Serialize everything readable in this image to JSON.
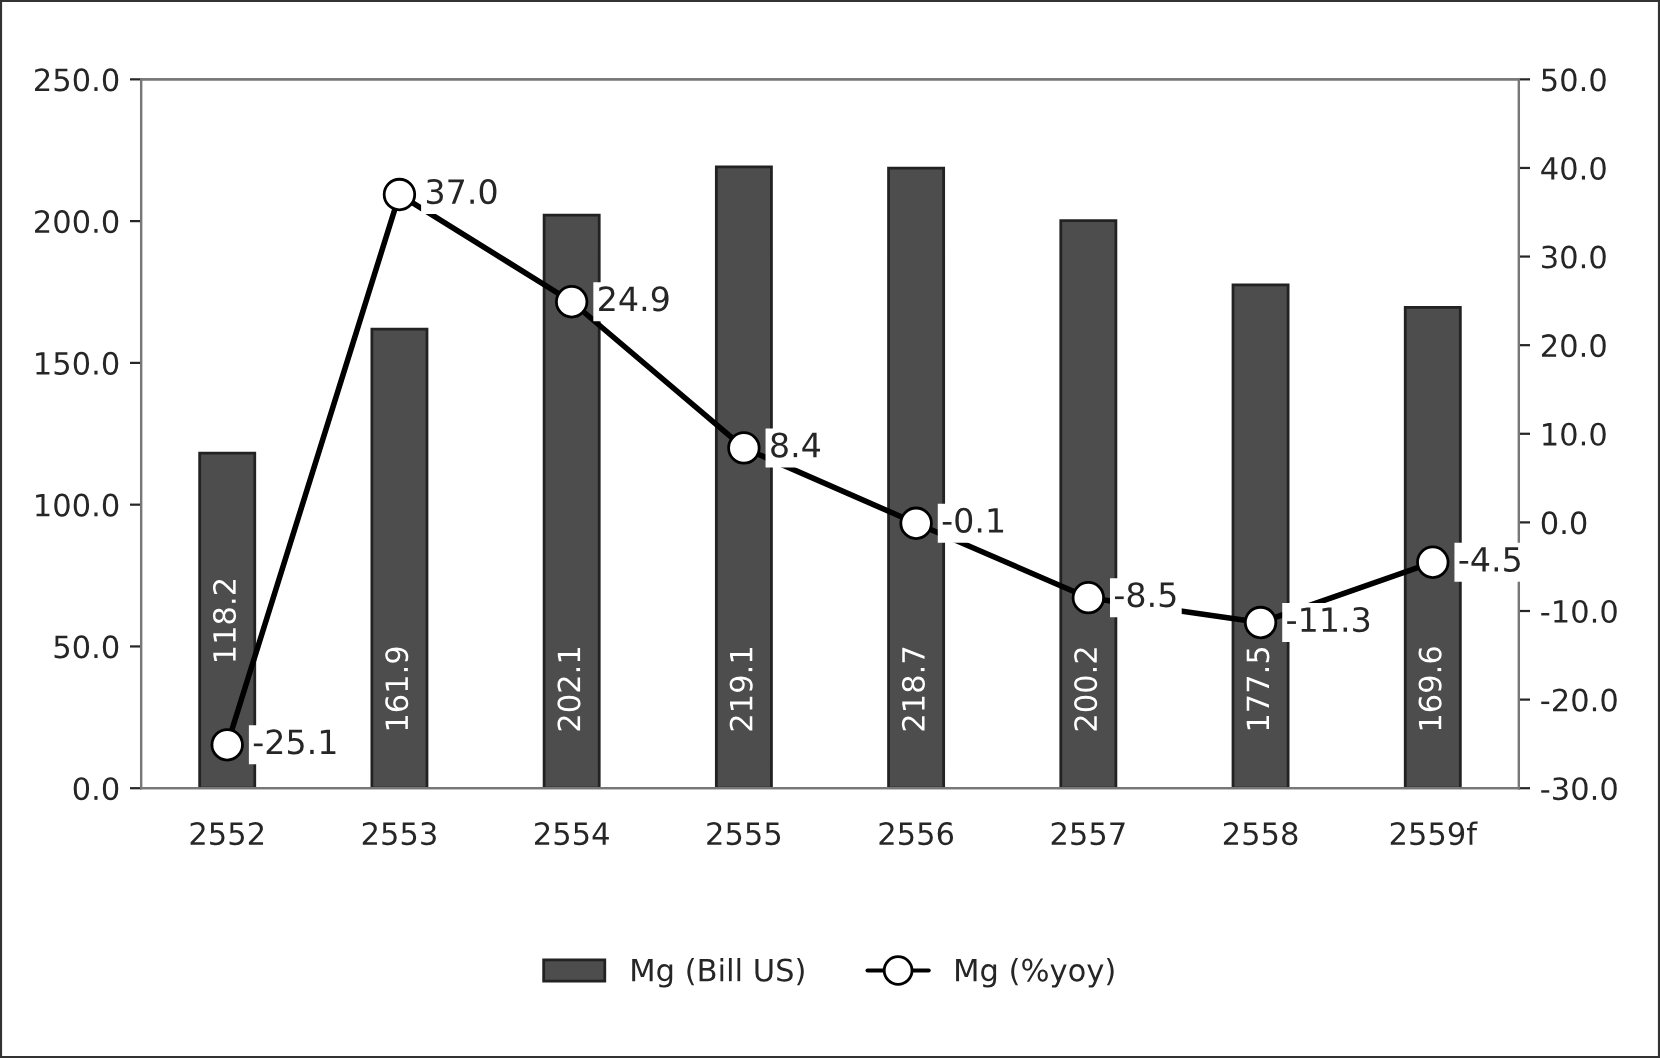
{
  "chart_data": {
    "type": "bar",
    "categories": [
      "2552",
      "2553",
      "2554",
      "2555",
      "2556",
      "2557",
      "2558",
      "2559f"
    ],
    "series": [
      {
        "name": "Mg (Bill US)",
        "color": "#4d4d4d",
        "values": [
          118.2,
          161.9,
          202.1,
          219.1,
          218.7,
          200.2,
          177.5,
          169.6
        ]
      },
      {
        "name": "Mg (%yoy)",
        "type": "line",
        "axis": "y2",
        "color": "#000000",
        "marker": "circle",
        "values": [
          -25.1,
          37.0,
          24.9,
          8.4,
          -0.1,
          -8.5,
          -11.3,
          -4.5
        ],
        "value_labels": [
          "-25.1",
          "37.0",
          "24.9",
          "8.4",
          "-0.1",
          "-8.5",
          "-11.3",
          "-4.5"
        ]
      }
    ],
    "ylim": [
      0,
      250
    ],
    "yticks": [
      {
        "value": 0,
        "label": "0.0"
      },
      {
        "value": 50,
        "label": "50.0"
      },
      {
        "value": 100,
        "label": "100.0"
      },
      {
        "value": 150,
        "label": "150.0"
      },
      {
        "value": 200,
        "label": "200.0"
      },
      {
        "value": 250,
        "label": "250.0"
      }
    ],
    "y2lim": [
      -30,
      50
    ],
    "y2ticks": [
      {
        "value": -30,
        "label": "-30.0"
      },
      {
        "value": -20,
        "label": "-20.0"
      },
      {
        "value": -10,
        "label": "-10.0"
      },
      {
        "value": 0,
        "label": "0.0"
      },
      {
        "value": 10,
        "label": "10.0"
      },
      {
        "value": 20,
        "label": "20.0"
      },
      {
        "value": 30,
        "label": "30.0"
      },
      {
        "value": 40,
        "label": "40.0"
      },
      {
        "value": 50,
        "label": "50.0"
      }
    ],
    "data_labels": true,
    "grid": false,
    "legend": "bottom"
  }
}
